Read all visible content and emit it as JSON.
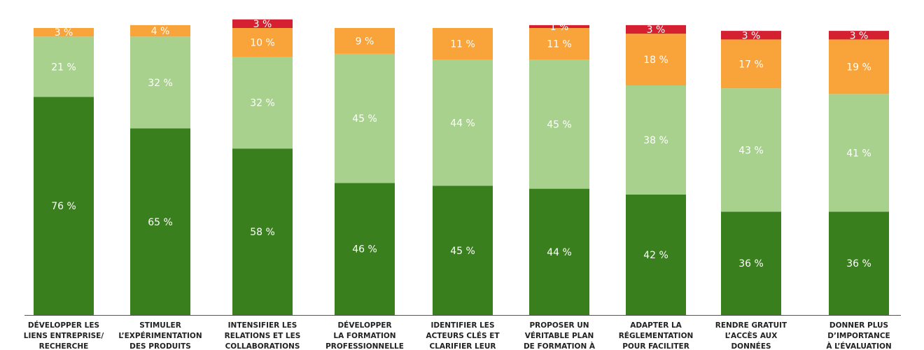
{
  "chart_data": {
    "type": "bar",
    "stacked": true,
    "title": "",
    "xlabel": "",
    "ylabel": "",
    "ylim": [
      0,
      100
    ],
    "categories": [
      [
        "DÉVELOPPER LES",
        "LIENS ENTREPRISE/",
        "RECHERCHE"
      ],
      [
        "STIMULER",
        "L’EXPÉRIMENTATION",
        "DES PRODUITS"
      ],
      [
        "INTENSIFIER LES",
        "RELATIONS ET LES",
        "COLLABORATIONS"
      ],
      [
        "DÉVELOPPER",
        "LA FORMATION",
        "PROFESSIONNELLE"
      ],
      [
        "IDENTIFIER LES",
        "ACTEURS CLÉS ET",
        "CLARIFIER LEUR"
      ],
      [
        "PROPOSER UN",
        "VÉRITABLE PLAN",
        "DE FORMATION À"
      ],
      [
        "ADAPTER LA",
        "RÉGLEMENTATION",
        "POUR FACILITER"
      ],
      [
        "RENDRE GRATUIT",
        "L’ACCÈS AUX",
        "DONNÉES"
      ],
      [
        "DONNER PLUS",
        "D’IMPORTANCE",
        "À L’ÉVALUATION"
      ]
    ],
    "series": [
      {
        "name": "series-1",
        "color": "#3a7f1e",
        "values": [
          76,
          65,
          58,
          46,
          45,
          44,
          42,
          36,
          36
        ]
      },
      {
        "name": "series-2",
        "color": "#a8d18d",
        "values": [
          21,
          32,
          32,
          45,
          44,
          45,
          38,
          43,
          41
        ]
      },
      {
        "name": "series-3",
        "color": "#f9a33b",
        "values": [
          3,
          4,
          10,
          9,
          11,
          11,
          18,
          17,
          19
        ]
      },
      {
        "name": "series-4",
        "color": "#d42030",
        "values": [
          0,
          0,
          3,
          0,
          0,
          1,
          3,
          3,
          3
        ]
      }
    ],
    "value_suffix": " %",
    "axis_color": "#555555"
  }
}
